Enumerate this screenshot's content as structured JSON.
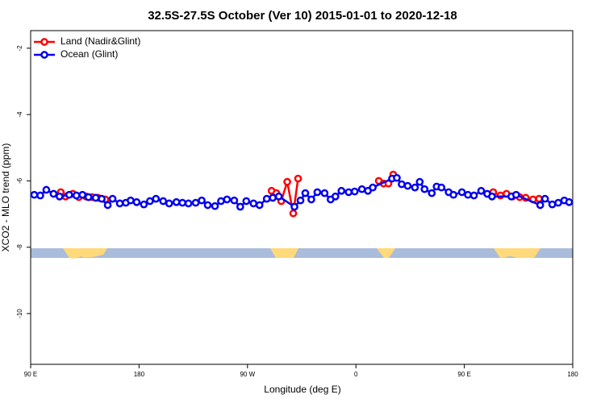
{
  "chart_data": {
    "type": "line",
    "title": "32.5S-27.5S October (Ver 10)   2015-01-01 to 2020-12-18",
    "xlabel": "Longitude (deg E)",
    "ylabel": "XCO2 - MLO trend (ppm)",
    "xlim": [
      90,
      540
    ],
    "xticks": [
      {
        "value": 90,
        "label": "90 E"
      },
      180,
      {
        "value": 270,
        "label": "90 W"
      },
      {
        "value": 360,
        "label": "0"
      },
      {
        "value": 450,
        "label": "90 E"
      },
      {
        "value": 540,
        "label": "180"
      }
    ],
    "ylim": [
      -11.53,
      -1.47
    ],
    "yticks": [
      -2,
      -4,
      -6,
      -8,
      -10
    ],
    "legend": "upper left",
    "series": [
      {
        "name": "Land (Nadir&Glint)",
        "color": "#ff0000",
        "x": [
          115,
          119,
          125,
          130,
          136,
          141,
          146,
          152,
          null,
          290,
          294,
          298,
          303,
          308,
          312,
          null,
          379,
          383,
          387,
          391,
          null,
          474,
          480,
          485,
          490,
          496,
          501,
          507,
          512
        ],
        "values": [
          -6.34,
          -6.47,
          -6.39,
          -6.49,
          -6.47,
          -6.49,
          -6.51,
          -6.56,
          null,
          -6.3,
          -6.37,
          -6.61,
          -6.03,
          -6.98,
          -5.93,
          null,
          -6.0,
          -6.08,
          -6.08,
          -5.81,
          null,
          -6.34,
          -6.44,
          -6.39,
          -6.47,
          -6.49,
          -6.51,
          -6.56,
          -6.54
        ]
      },
      {
        "name": "Ocean (Glint)",
        "color": "#0000ee",
        "x": [
          93,
          98,
          103,
          109,
          114,
          122,
          128,
          133,
          138,
          144,
          149,
          154,
          158,
          164,
          169,
          173,
          178,
          184,
          189,
          194,
          200,
          205,
          211,
          216,
          221,
          227,
          232,
          237,
          243,
          248,
          253,
          259,
          264,
          269,
          275,
          280,
          286,
          291,
          296,
          309,
          314,
          318,
          323,
          328,
          334,
          339,
          343,
          348,
          354,
          359,
          365,
          370,
          374,
          390,
          394,
          398,
          403,
          409,
          413,
          417,
          423,
          427,
          431,
          437,
          441,
          448,
          453,
          458,
          464,
          469,
          473,
          489,
          493,
          513,
          517,
          523,
          528,
          533,
          537
        ],
        "values": [
          -6.42,
          -6.44,
          -6.27,
          -6.39,
          -6.47,
          -6.42,
          -6.44,
          -6.42,
          -6.49,
          -6.51,
          -6.54,
          -6.73,
          -6.54,
          -6.68,
          -6.66,
          -6.59,
          -6.64,
          -6.71,
          -6.61,
          -6.54,
          -6.61,
          -6.68,
          -6.64,
          -6.66,
          -6.68,
          -6.66,
          -6.59,
          -6.73,
          -6.76,
          -6.61,
          -6.56,
          -6.59,
          -6.78,
          -6.61,
          -6.68,
          -6.73,
          -6.54,
          -6.51,
          -6.47,
          -6.78,
          -6.59,
          -6.37,
          -6.56,
          -6.34,
          -6.37,
          -6.56,
          -6.47,
          -6.3,
          -6.34,
          -6.32,
          -6.25,
          -6.3,
          -6.2,
          -5.93,
          -5.91,
          -6.1,
          -6.15,
          -6.2,
          -6.03,
          -6.25,
          -6.37,
          -6.17,
          -6.2,
          -6.34,
          -6.42,
          -6.34,
          -6.42,
          -6.44,
          -6.3,
          -6.39,
          -6.47,
          -6.47,
          -6.42,
          -6.73,
          -6.54,
          -6.71,
          -6.66,
          -6.59,
          -6.64
        ]
      }
    ]
  }
}
